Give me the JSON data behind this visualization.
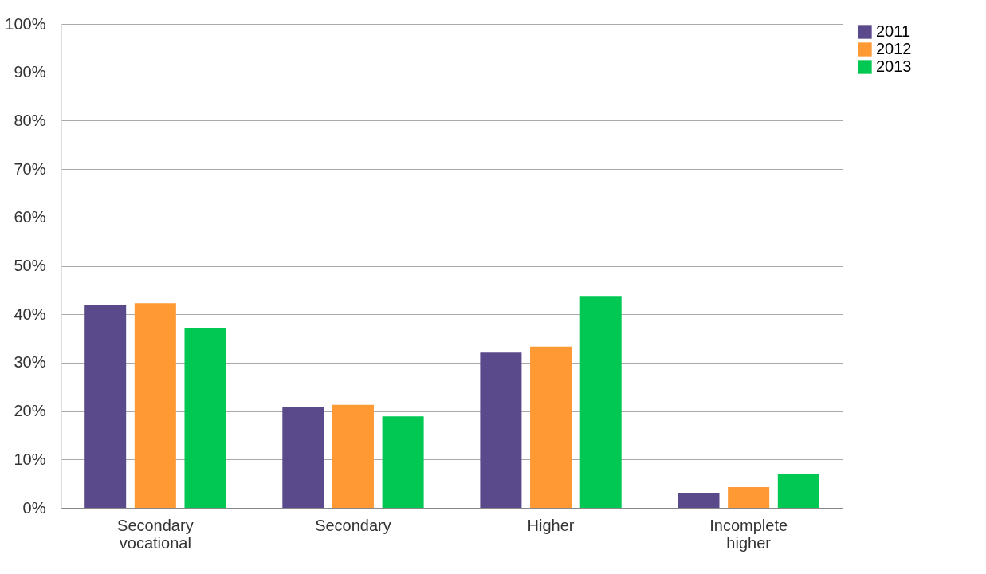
{
  "chart_data": {
    "type": "bar",
    "categories": [
      "Secondary vocational",
      "Secondary",
      "Higher",
      "Incomplete higher"
    ],
    "series": [
      {
        "name": "2011",
        "color": "#5b4a8b",
        "values": [
          42.0,
          20.9,
          32.1,
          3.1
        ]
      },
      {
        "name": "2012",
        "color": "#ff9933",
        "values": [
          42.3,
          21.3,
          33.3,
          4.3
        ]
      },
      {
        "name": "2013",
        "color": "#00c853",
        "values": [
          37.1,
          18.9,
          43.8,
          6.9
        ]
      }
    ],
    "ylim": [
      0,
      100
    ],
    "yticks": [
      {
        "value": 0,
        "label": "0%"
      },
      {
        "value": 10,
        "label": "10%"
      },
      {
        "value": 20,
        "label": "20%"
      },
      {
        "value": 30,
        "label": "30%"
      },
      {
        "value": 40,
        "label": "40%"
      },
      {
        "value": 50,
        "label": "50%"
      },
      {
        "value": 60,
        "label": "60%"
      },
      {
        "value": 70,
        "label": "70%"
      },
      {
        "value": 80,
        "label": "80%"
      },
      {
        "value": 90,
        "label": "90%"
      },
      {
        "value": 100,
        "label": "100%"
      }
    ],
    "grid": "y",
    "legend": "right"
  }
}
